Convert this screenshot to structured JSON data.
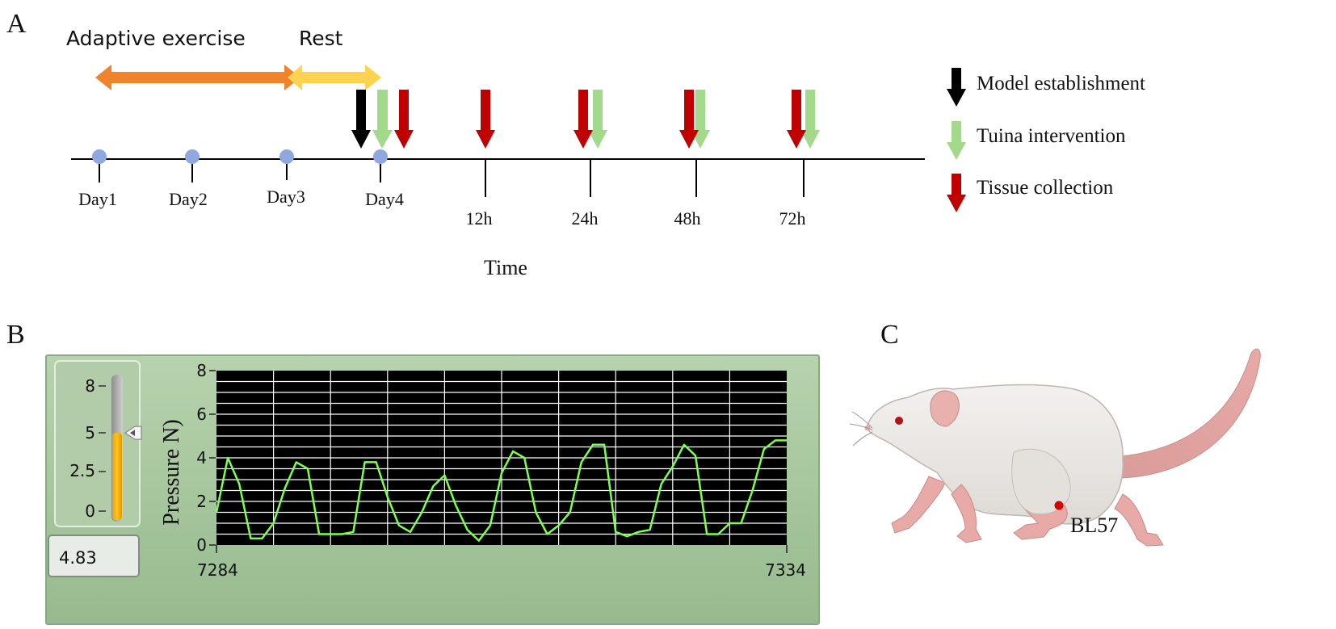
{
  "panel_a": {
    "letter": "A",
    "phase_exercise_label": "Adaptive exercise",
    "phase_rest_label": "Rest",
    "day_labels": [
      "Day1",
      "Day2",
      "Day3",
      "Day4"
    ],
    "hour_labels": [
      "12h",
      "24h",
      "48h",
      "72h"
    ],
    "axis_title": "Time",
    "legend": [
      {
        "label": "Model establishment",
        "color": "#000000"
      },
      {
        "label": "Tuina intervention",
        "color": "#a3d98a"
      },
      {
        "label": "Tissue collection",
        "color": "#c00000"
      }
    ],
    "colors": {
      "exercise": "#f0842c",
      "rest": "#ffd24f",
      "dot": "#8fa8e0"
    }
  },
  "panel_b": {
    "letter": "B",
    "slider_ticks": [
      "8",
      "5",
      "2.5",
      "0"
    ],
    "slider_value": 5,
    "readout": "4.83",
    "chart_data": {
      "type": "line",
      "ylabel": "Pressure N)",
      "xlabel": "",
      "ylim": [
        0,
        8
      ],
      "y_ticks": [
        "0",
        "2",
        "4",
        "6",
        "8"
      ],
      "x_ticks": [
        "7284",
        "7334"
      ],
      "xlim": [
        7284,
        7334
      ],
      "series": [
        {
          "color": "#7dff4e",
          "x": [
            7284,
            7285,
            7286,
            7287,
            7288,
            7289,
            7290,
            7291,
            7292,
            7293,
            7294,
            7295,
            7296,
            7297,
            7298,
            7299,
            7300,
            7301,
            7302,
            7303,
            7304,
            7305,
            7306,
            7307,
            7308,
            7309,
            7310,
            7311,
            7312,
            7313,
            7314,
            7315,
            7316,
            7317,
            7318,
            7319,
            7320,
            7321,
            7322,
            7323,
            7324,
            7325,
            7326,
            7327,
            7328,
            7329,
            7330,
            7331,
            7332,
            7333,
            7334
          ],
          "values": [
            1.5,
            4,
            2.8,
            0.3,
            0.3,
            1,
            2.6,
            3.8,
            3.5,
            0.5,
            0.5,
            0.5,
            0.6,
            3.8,
            3.8,
            2.2,
            0.9,
            0.6,
            1.5,
            2.7,
            3.2,
            1.8,
            0.7,
            0.2,
            0.9,
            3.3,
            4.3,
            4,
            1.5,
            0.5,
            0.9,
            1.5,
            3.8,
            4.6,
            4.6,
            0.6,
            0.4,
            0.6,
            0.7,
            2.8,
            3.6,
            4.6,
            4.1,
            0.5,
            0.5,
            1,
            1,
            2.5,
            4.4,
            4.8,
            4.8
          ]
        }
      ]
    }
  },
  "panel_c": {
    "letter": "C",
    "point_label": "BL57"
  }
}
